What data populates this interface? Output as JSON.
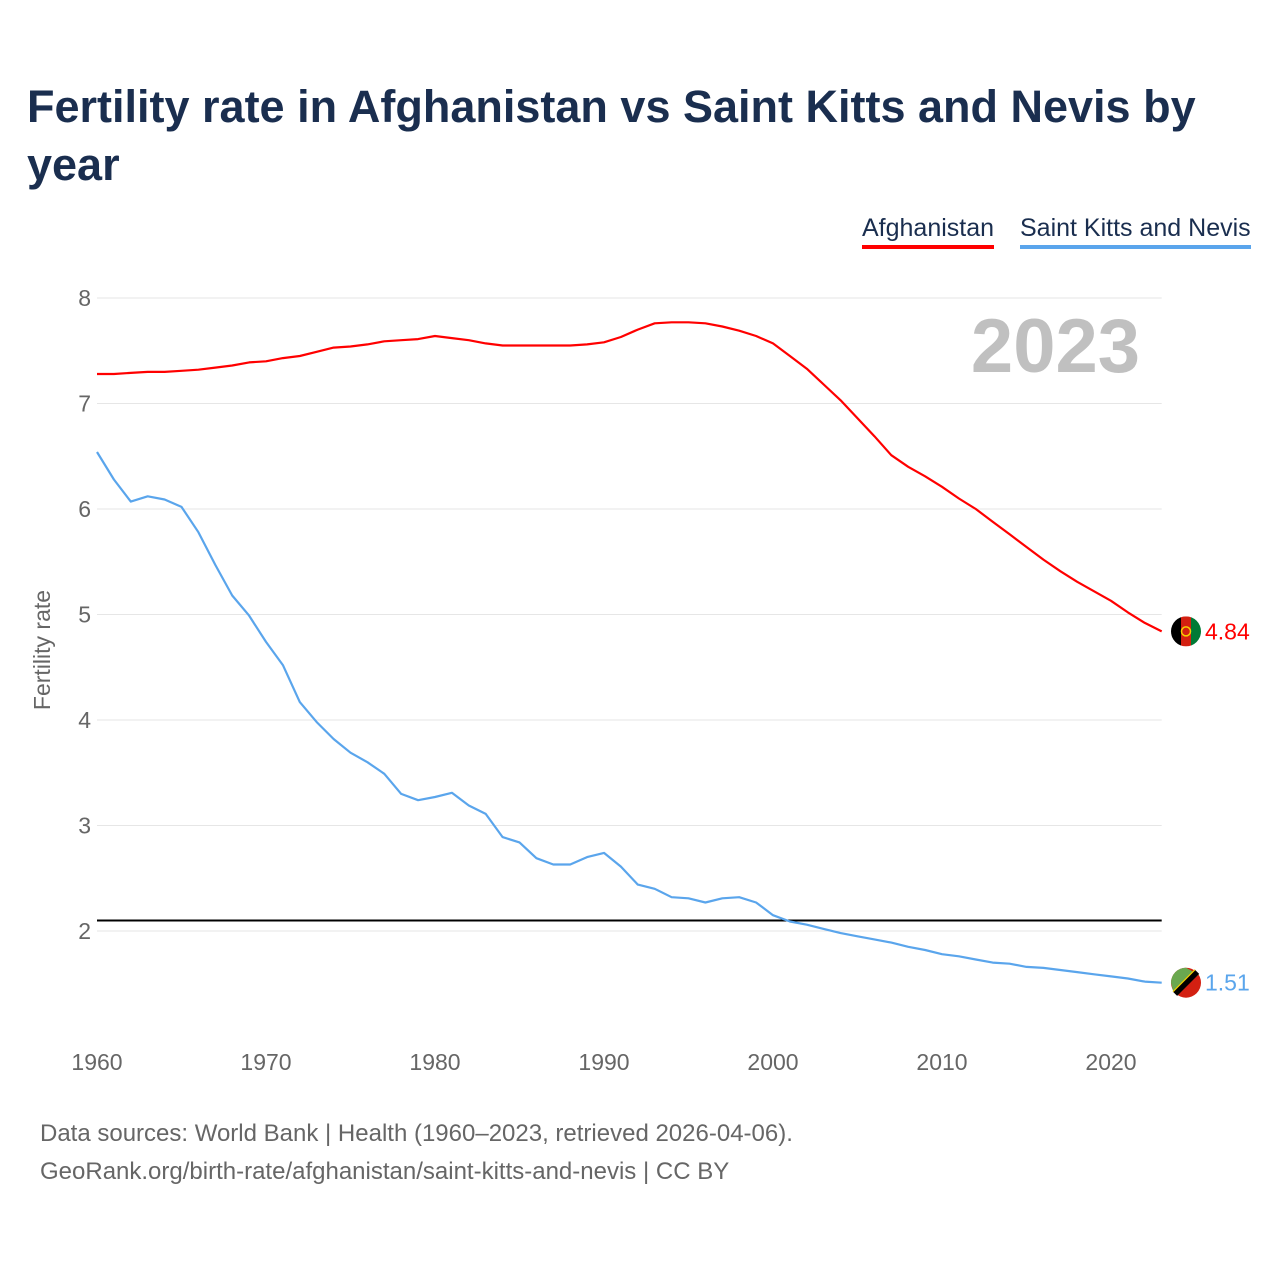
{
  "chart_data": {
    "type": "line",
    "title": "Fertility rate in Afghanistan vs Saint Kitts and Nevis by year",
    "xlabel": "",
    "ylabel": "Fertility rate",
    "xlim": [
      1960,
      2023
    ],
    "ylim": [
      1,
      8
    ],
    "x_ticks": [
      1960,
      1970,
      1980,
      1990,
      2000,
      2010,
      2020
    ],
    "y_ticks": [
      2,
      3,
      4,
      5,
      6,
      7,
      8
    ],
    "grid": true,
    "legend_position": "top-right",
    "year_label": "2023",
    "reference_line": 2.1,
    "x_start": 1960,
    "series": [
      {
        "name": "Afghanistan",
        "color": "#ff0000",
        "end_label": "4.84",
        "flag": "afghanistan-flag",
        "values": [
          7.28,
          7.28,
          7.29,
          7.3,
          7.3,
          7.31,
          7.32,
          7.34,
          7.36,
          7.39,
          7.4,
          7.43,
          7.45,
          7.49,
          7.53,
          7.54,
          7.56,
          7.59,
          7.6,
          7.61,
          7.64,
          7.62,
          7.6,
          7.57,
          7.55,
          7.55,
          7.55,
          7.55,
          7.55,
          7.56,
          7.58,
          7.63,
          7.7,
          7.76,
          7.77,
          7.77,
          7.76,
          7.73,
          7.69,
          7.64,
          7.57,
          7.45,
          7.33,
          7.18,
          7.03,
          6.86,
          6.69,
          6.51,
          6.4,
          6.31,
          6.21,
          6.1,
          6.0,
          5.88,
          5.76,
          5.64,
          5.52,
          5.41,
          5.31,
          5.22,
          5.13,
          5.02,
          4.92,
          4.84
        ]
      },
      {
        "name": "Saint Kitts and Nevis",
        "color": "#5aa5ec",
        "end_label": "1.51",
        "flag": "saint-kitts-and-nevis-flag",
        "values": [
          6.54,
          6.28,
          6.07,
          6.12,
          6.09,
          6.02,
          5.78,
          5.47,
          5.18,
          4.99,
          4.74,
          4.52,
          4.17,
          3.98,
          3.82,
          3.69,
          3.6,
          3.49,
          3.3,
          3.24,
          3.27,
          3.31,
          3.19,
          3.11,
          2.89,
          2.84,
          2.69,
          2.63,
          2.63,
          2.7,
          2.74,
          2.61,
          2.44,
          2.4,
          2.32,
          2.31,
          2.27,
          2.31,
          2.32,
          2.27,
          2.15,
          2.09,
          2.06,
          2.02,
          1.98,
          1.95,
          1.92,
          1.89,
          1.85,
          1.82,
          1.78,
          1.76,
          1.73,
          1.7,
          1.69,
          1.66,
          1.65,
          1.63,
          1.61,
          1.59,
          1.57,
          1.55,
          1.52,
          1.51
        ]
      }
    ]
  },
  "footer": {
    "sources": "Data sources: World Bank | Health (1960–2023, retrieved 2026-04-06).",
    "url": "GeoRank.org/birth-rate/afghanistan/saint-kitts-and-nevis | CC BY"
  }
}
